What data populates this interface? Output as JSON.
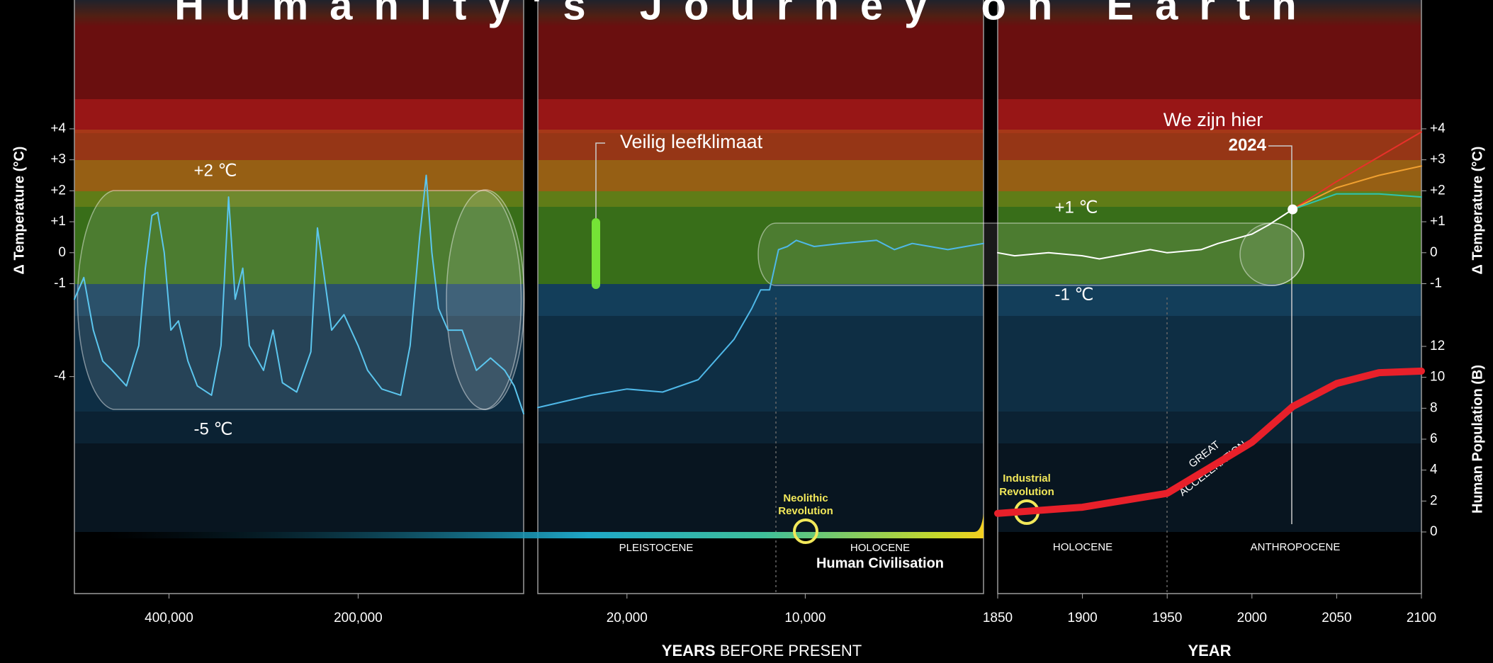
{
  "header": {
    "title": "Humanity's Journey on Earth"
  },
  "footer": {
    "x_label_bold": "YEARS",
    "x_label": "BEFORE PRESENT",
    "x_label_right": "YEAR"
  },
  "chart_data": [
    {
      "type": "line",
      "y_label": "Δ Temperature (°C)",
      "xlim": [
        500000,
        25000
      ],
      "xticks": [
        {
          "value": 400000,
          "label": "400,000"
        },
        {
          "value": 200000,
          "label": "200,000"
        }
      ],
      "ylim": [
        -10,
        8
      ],
      "yticks": [
        {
          "value": 4,
          "label": "+4"
        },
        {
          "value": 3,
          "label": "+3"
        },
        {
          "value": 2,
          "label": "+2"
        },
        {
          "value": 1,
          "label": "+1"
        },
        0,
        -1,
        -4
      ],
      "annotations": [
        "+2 ℃",
        "-5 ℃"
      ],
      "series": [
        {
          "color": "#5cc6ee",
          "x": [
            500000,
            490000,
            480000,
            470000,
            460000,
            445000,
            432000,
            425000,
            418000,
            412000,
            405000,
            398000,
            390000,
            380000,
            370000,
            355000,
            345000,
            337000,
            330000,
            322000,
            315000,
            300000,
            290000,
            280000,
            265000,
            250000,
            243000,
            237000,
            228000,
            215000,
            200000,
            190000,
            175000,
            155000,
            145000,
            135000,
            128000,
            122000,
            115000,
            105000,
            90000,
            75000,
            60000,
            45000,
            35000,
            25000
          ],
          "values": [
            -1.5,
            -0.8,
            -2.5,
            -3.5,
            -3.8,
            -4.3,
            -3,
            -0.5,
            1.2,
            1.3,
            0,
            -2.5,
            -2.2,
            -3.5,
            -4.3,
            -4.6,
            -3,
            1.8,
            -1.5,
            -0.5,
            -3,
            -3.8,
            -2.5,
            -4.2,
            -4.5,
            -3.2,
            0.8,
            -0.5,
            -2.5,
            -2,
            -3,
            -3.8,
            -4.4,
            -4.6,
            -3,
            0.5,
            2.5,
            0,
            -1.8,
            -2.5,
            -2.5,
            -3.8,
            -3.4,
            -3.8,
            -4.3,
            -5.2
          ]
        }
      ]
    },
    {
      "type": "line",
      "xlim": [
        25000,
        0
      ],
      "xticks": [
        {
          "value": 20000,
          "label": "20,000"
        },
        {
          "value": 10000,
          "label": "10,000"
        }
      ],
      "ylim": [
        -10,
        8
      ],
      "annotations": [
        "Veilig leefklimaat",
        "PLEISTOCENE",
        "HOLOCENE",
        "Human Civilisation"
      ],
      "revolution_label": [
        "Neolithic",
        "Revolution"
      ],
      "series": [
        {
          "color": "#4fb8e8",
          "x": [
            25000,
            22000,
            20000,
            18000,
            16000,
            14000,
            13000,
            12500,
            12000,
            11500,
            11000,
            10500,
            9500,
            8000,
            6000,
            5000,
            4000,
            3000,
            2000,
            1000,
            0
          ],
          "values": [
            -5,
            -4.6,
            -4.4,
            -4.5,
            -4.1,
            -2.8,
            -1.8,
            -1.2,
            -1.2,
            0.1,
            0.2,
            0.4,
            0.2,
            0.3,
            0.4,
            0.1,
            0.3,
            0.2,
            0.1,
            0.2,
            0.3
          ]
        }
      ]
    },
    {
      "type": "line",
      "y_label": "Δ Temperature (°C)",
      "y2_label": "Human Population (B)",
      "xlim": [
        1850,
        2100
      ],
      "xticks": [
        1850,
        1900,
        1950,
        2000,
        2050,
        2100
      ],
      "ylim": [
        -10,
        8
      ],
      "yticks": [
        {
          "value": 4,
          "label": "+4"
        },
        {
          "value": 3,
          "label": "+3"
        },
        {
          "value": 2,
          "label": "+2"
        },
        {
          "value": 1,
          "label": "+1"
        },
        0,
        -1
      ],
      "y2lim": [
        0,
        12
      ],
      "y2ticks": [
        0,
        2,
        4,
        6,
        8,
        10,
        12
      ],
      "annotations": [
        "We zijn hier",
        "2024",
        "+1 ℃",
        "-1 ℃",
        "HOLOCENE",
        "ANTHROPOCENE"
      ],
      "revolution_label": [
        "Industrial",
        "Revolution"
      ],
      "acceleration_label": [
        "GREAT",
        "ACCELERATION"
      ],
      "series": [
        {
          "color": "#ffffff",
          "x": [
            1850,
            1860,
            1880,
            1900,
            1910,
            1940,
            1950,
            1970,
            1980,
            2000,
            2010,
            2024
          ],
          "values": [
            0,
            -0.1,
            0,
            -0.1,
            -0.2,
            0.1,
            0,
            0.1,
            0.3,
            0.6,
            0.9,
            1.4
          ]
        },
        {
          "color": "#e8302a",
          "x": [
            2024,
            2050,
            2075,
            2100
          ],
          "values": [
            1.4,
            2.3,
            3.1,
            3.9
          ]
        },
        {
          "color": "#f0a030",
          "x": [
            2024,
            2050,
            2075,
            2100
          ],
          "values": [
            1.4,
            2.1,
            2.5,
            2.8
          ]
        },
        {
          "color": "#2ec4b0",
          "x": [
            2024,
            2050,
            2075,
            2100
          ],
          "values": [
            1.4,
            1.9,
            1.9,
            1.8
          ]
        },
        {
          "color": "#e8202a",
          "axis": "y2",
          "x": [
            1850,
            1900,
            1950,
            2000,
            2024,
            2050,
            2075,
            2100
          ],
          "values": [
            1.2,
            1.6,
            2.5,
            5.8,
            8.1,
            9.6,
            10.3,
            10.4
          ]
        }
      ]
    }
  ]
}
